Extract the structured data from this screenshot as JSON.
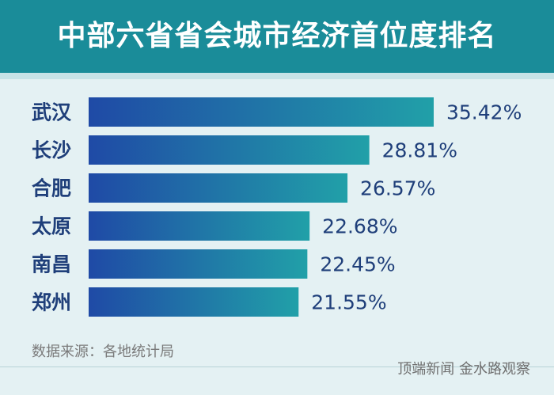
{
  "chart_data": {
    "type": "bar",
    "orientation": "horizontal",
    "title": "中部六省省会城市经济首位度排名",
    "categories": [
      "武汉",
      "长沙",
      "合肥",
      "太原",
      "南昌",
      "郑州"
    ],
    "values": [
      35.42,
      28.81,
      26.57,
      22.68,
      22.45,
      21.55
    ],
    "value_labels": [
      "35.42%",
      "28.81%",
      "26.57%",
      "22.68%",
      "22.45%",
      "21.55%"
    ],
    "xlim": [
      0,
      35.42
    ],
    "grid": false,
    "legend": "none"
  },
  "source": "数据来源：各地统计局",
  "credit": "顶端新闻  金水路观察",
  "colors": {
    "header": "#1a8c99",
    "background": "#e4f1f3",
    "bar_start": "#1f4aa6",
    "bar_end": "#21a0a8",
    "category_text": "#1f3f7a",
    "value_text": "#1f3f7a"
  }
}
